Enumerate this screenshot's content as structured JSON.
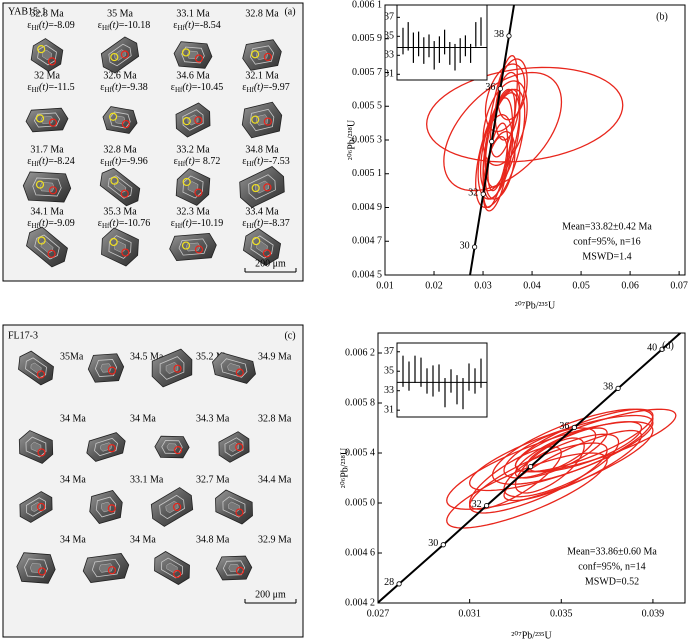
{
  "panels": [
    {
      "sample": "YAB15-1",
      "label": "(a)",
      "scale_bar": "200 μm",
      "epsilon_symbol": "ε",
      "epsilon_sub": "Hf",
      "epsilon_arg": "(t)",
      "grains": [
        {
          "age": "32.8 Ma",
          "epsilon": "=-8.09"
        },
        {
          "age": "35 Ma",
          "epsilon": "=-10.18"
        },
        {
          "age": "33.1 Ma",
          "epsilon": "=-8.54"
        },
        {
          "age": "32.8 Ma"
        },
        {
          "age": "32 Ma",
          "epsilon": "=-11.5"
        },
        {
          "age": "32.6 Ma",
          "epsilon": "=-9.38"
        },
        {
          "age": "34.6 Ma",
          "epsilon": "=-10.45"
        },
        {
          "age": "32.1 Ma",
          "epsilon": "=-9.97"
        },
        {
          "age": "31.7 Ma",
          "epsilon": "=-8.24"
        },
        {
          "age": "32.8 Ma",
          "epsilon": "=-9.96"
        },
        {
          "age": "33.2 Ma",
          "epsilon": "= 8.72"
        },
        {
          "age": "34.8 Ma",
          "epsilon": "=-7.53"
        },
        {
          "age": "34.1 Ma",
          "epsilon": "=-9.09"
        },
        {
          "age": "35.3 Ma",
          "epsilon": "=-10.76"
        },
        {
          "age": "32.3 Ma",
          "epsilon": "=-10.19"
        },
        {
          "age": "33.4 Ma",
          "epsilon": "=-8.37"
        }
      ]
    },
    {
      "sample": "FL17-3",
      "label": "(c)",
      "scale_bar": "200 μm",
      "grains": [
        {
          "age": "35Ma"
        },
        {
          "age": "34.5 Ma"
        },
        {
          "age": "35.2 Ma"
        },
        {
          "age": "34.9 Ma"
        },
        {
          "age": "34 Ma"
        },
        {
          "age": "34 Ma"
        },
        {
          "age": "34.3 Ma"
        },
        {
          "age": "32.8 Ma"
        },
        {
          "age": "34 Ma"
        },
        {
          "age": "33.1 Ma"
        },
        {
          "age": "32.7 Ma"
        },
        {
          "age": "34.4 Ma"
        },
        {
          "age": "34 Ma"
        },
        {
          "age": "34 Ma"
        },
        {
          "age": "34.8 Ma"
        },
        {
          "age": "32.9 Ma"
        }
      ]
    }
  ],
  "chart_data": [
    {
      "type": "concordia",
      "panel_label": "(b)",
      "x_label": "²⁰⁷Pb/²³⁵U",
      "y_label": "²⁰⁶Pb/²³⁸U",
      "xlim": [
        0.01,
        0.0712
      ],
      "ylim": [
        0.0045,
        0.0061
      ],
      "xticks": [
        0.01,
        0.02,
        0.03,
        0.04,
        0.05,
        0.06,
        0.07
      ],
      "yticks": [
        {
          "value": 0.0045,
          "label": "0.004 5"
        },
        {
          "value": 0.0047,
          "label": "0.004 7"
        },
        {
          "value": 0.0049,
          "label": "0.004 9"
        },
        {
          "value": 0.0051,
          "label": "0.005 1"
        },
        {
          "value": 0.0053,
          "label": "0.005 3"
        },
        {
          "value": 0.0055,
          "label": "0.005 5"
        },
        {
          "value": 0.0057,
          "label": "0.005 7"
        },
        {
          "value": 0.0059,
          "label": "0.005 9"
        },
        {
          "value": 0.0061,
          "label": "0.006 1"
        }
      ],
      "concordia": {
        "ages": [
          30,
          32,
          null,
          36,
          38
        ],
        "x": [
          0.02828,
          0.03004,
          0.03177,
          0.03353,
          0.03529
        ],
        "y": [
          0.004666,
          0.004979,
          0.005291,
          0.005604,
          0.005917
        ]
      },
      "ellipses": {
        "color": "#e8261c",
        "x": [
          0.0385,
          0.034,
          0.0335,
          0.0345,
          0.033,
          0.0325,
          0.0335,
          0.036,
          0.034,
          0.0335,
          0.0325,
          0.0345,
          0.0335,
          0.035,
          0.033,
          0.034
        ],
        "y": [
          0.00545,
          0.00535,
          0.00535,
          0.00555,
          0.00525,
          0.0052,
          0.0053,
          0.0056,
          0.0054,
          0.00515,
          0.0051,
          0.0054,
          0.00525,
          0.0055,
          0.0052,
          0.0053
        ],
        "x_err": [
          0.02,
          0.012,
          0.0035,
          0.004,
          0.003,
          0.0035,
          0.004,
          0.003,
          0.0025,
          0.003,
          0.0025,
          0.0045,
          0.005,
          0.0025,
          0.002,
          0.0035
        ],
        "y_err": [
          0.00028,
          0.00035,
          0.00045,
          0.0002,
          0.0003,
          0.00025,
          0.0003,
          0.00018,
          0.0002,
          0.0002,
          0.00022,
          0.00025,
          0.00035,
          0.0002,
          0.0002,
          0.00028
        ],
        "rho": [
          0.2,
          0.5,
          0.7,
          0.4,
          0.5,
          0.4,
          0.6,
          0.3,
          0.5,
          0.4,
          0.5,
          0.4,
          0.6,
          0.3,
          0.5,
          0.5
        ]
      },
      "inset": {
        "ylim": [
          30.4,
          38.3
        ],
        "yticks": [
          31,
          33,
          35,
          37
        ],
        "mean": 33.82,
        "values": [
          34.5,
          35,
          33.8,
          34.2,
          33.5,
          34,
          33,
          33.6,
          34.4,
          33.2,
          32.8,
          33.5,
          34,
          33.2,
          35.2,
          35.5
        ],
        "errors": [
          1.4,
          1.5,
          1.6,
          1.3,
          1.4,
          1.2,
          1.5,
          1.4,
          1.3,
          1.2,
          1.4,
          1.3,
          1.1,
          1.0,
          1.3,
          1.5
        ]
      },
      "annotations": [
        "Mean=33.82±0.42 Ma",
        "conf=95%, n=16",
        "MSWD=1.4"
      ]
    },
    {
      "type": "concordia",
      "panel_label": "(d)",
      "x_label": "²⁰⁷Pb/²³⁵U",
      "y_label": "²⁰⁶Pb/²³⁸U",
      "xlim": [
        0.027,
        0.0404
      ],
      "ylim": [
        0.0042,
        0.00636
      ],
      "xticks": [
        0.027,
        0.031,
        0.035,
        0.039
      ],
      "yticks": [
        {
          "value": 0.0042,
          "label": "0.004 2"
        },
        {
          "value": 0.0046,
          "label": "0.004 6"
        },
        {
          "value": 0.005,
          "label": "0.005 0"
        },
        {
          "value": 0.0054,
          "label": "0.005 4"
        },
        {
          "value": 0.0058,
          "label": "0.005 8"
        },
        {
          "value": 0.0062,
          "label": "0.006 2"
        }
      ],
      "concordia": {
        "ages": [
          28,
          30,
          32,
          null,
          36,
          38,
          40
        ],
        "x": [
          0.02792,
          0.02985,
          0.03174,
          0.03366,
          0.03557,
          0.03748,
          0.0394
        ],
        "y": [
          0.004353,
          0.004666,
          0.004979,
          0.005291,
          0.005604,
          0.005917,
          0.00623
        ]
      },
      "ellipses": {
        "color": "#e8261c",
        "x": [
          0.0345,
          0.035,
          0.0355,
          0.034,
          0.036,
          0.0335,
          0.035,
          0.0365,
          0.0345,
          0.0355,
          0.033,
          0.036,
          0.0345,
          0.035
        ],
        "y": [
          0.0053,
          0.0054,
          0.00545,
          0.0052,
          0.0055,
          0.0051,
          0.0053,
          0.0055,
          0.0054,
          0.0053,
          0.0052,
          0.00545,
          0.0053,
          0.0054
        ],
        "x_err": [
          0.0045,
          0.004,
          0.0035,
          0.003,
          0.003,
          0.0035,
          0.0025,
          0.0035,
          0.002,
          0.003,
          0.002,
          0.0025,
          0.0015,
          0.002
        ],
        "y_err": [
          0.00035,
          0.0003,
          0.0003,
          0.00028,
          0.00025,
          0.0003,
          0.00025,
          0.00025,
          0.0002,
          0.00028,
          0.00025,
          0.0002,
          0.00022,
          0.0002
        ],
        "rho": [
          0.8,
          0.8,
          0.75,
          0.8,
          0.8,
          0.8,
          0.75,
          0.8,
          0.7,
          0.85,
          0.8,
          0.75,
          0.7,
          0.8
        ]
      },
      "inset": {
        "ylim": [
          30.3,
          37.9
        ],
        "yticks": [
          31,
          33,
          35,
          37
        ],
        "mean": 33.86,
        "values": [
          35,
          34.5,
          35.2,
          34.9,
          34,
          34,
          34.3,
          32.8,
          34,
          33.1,
          32.7,
          34.4,
          34,
          34.8
        ],
        "errors": [
          1.6,
          1.5,
          1.4,
          1.5,
          1.3,
          1.6,
          1.4,
          1.5,
          1.2,
          1.5,
          1.6,
          1.4,
          1.3,
          1.5
        ]
      },
      "annotations": [
        "Mean=33.86±0.60 Ma",
        "conf=95%, n=14",
        "MSWD=0.52"
      ]
    }
  ]
}
